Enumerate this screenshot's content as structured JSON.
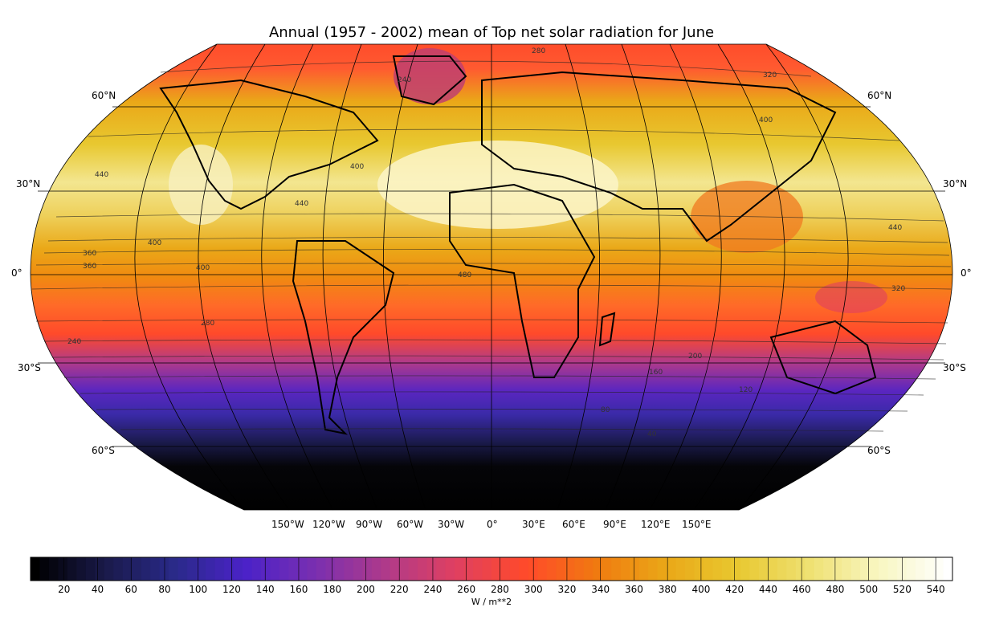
{
  "title": "Annual (1957 - 2002) mean of Top net solar radiation for June",
  "latitude_labels": {
    "n60_left": "60°N",
    "n60_right": "60°N",
    "n30_left": "30°N",
    "n30_right": "30°N",
    "eq_left": "0°",
    "eq_right": "0°",
    "s30_left": "30°S",
    "s30_right": "30°S",
    "s60_left": "60°S",
    "s60_right": "60°S"
  },
  "longitude_labels": [
    "150°W",
    "120°W",
    "90°W",
    "60°W",
    "30°W",
    "0°",
    "30°E",
    "60°E",
    "90°E",
    "120°E",
    "150°E"
  ],
  "contour_labels": [
    "280",
    "320",
    "400",
    "440",
    "240",
    "360",
    "400",
    "360",
    "400",
    "280",
    "240",
    "200",
    "160",
    "120",
    "80",
    "40",
    "320",
    "440",
    "480",
    "400",
    "440"
  ],
  "colorbar": {
    "ticks": [
      "20",
      "40",
      "60",
      "80",
      "100",
      "120",
      "140",
      "160",
      "180",
      "200",
      "220",
      "240",
      "260",
      "280",
      "300",
      "320",
      "340",
      "360",
      "380",
      "400",
      "420",
      "440",
      "460",
      "480",
      "500",
      "520",
      "540"
    ],
    "unit_label": "W / m**2",
    "min": 0,
    "max": 550,
    "colors": [
      "#000000",
      "#1a1a4a",
      "#2a2a8a",
      "#4b22c8",
      "#7a2fb0",
      "#b03a8a",
      "#e04060",
      "#ff4a2a",
      "#f07a10",
      "#eaa818",
      "#e8c830",
      "#efe070",
      "#f8f6c0",
      "#ffffff"
    ]
  },
  "map_data": {
    "projection": "Robinson",
    "variable": "Top net solar radiation",
    "period": "1957 - 2002",
    "month": "June",
    "units": "W / m**2",
    "zonal_profile": [
      {
        "lat": 90,
        "value": 300
      },
      {
        "lat": 75,
        "value": 340
      },
      {
        "lat": 60,
        "value": 400
      },
      {
        "lat": 45,
        "value": 430
      },
      {
        "lat": 30,
        "value": 450
      },
      {
        "lat": 20,
        "value": 430
      },
      {
        "lat": 10,
        "value": 380
      },
      {
        "lat": 0,
        "value": 320
      },
      {
        "lat": -10,
        "value": 290
      },
      {
        "lat": -20,
        "value": 240
      },
      {
        "lat": -30,
        "value": 170
      },
      {
        "lat": -40,
        "value": 110
      },
      {
        "lat": -50,
        "value": 60
      },
      {
        "lat": -60,
        "value": 20
      },
      {
        "lat": -75,
        "value": 0
      }
    ]
  }
}
